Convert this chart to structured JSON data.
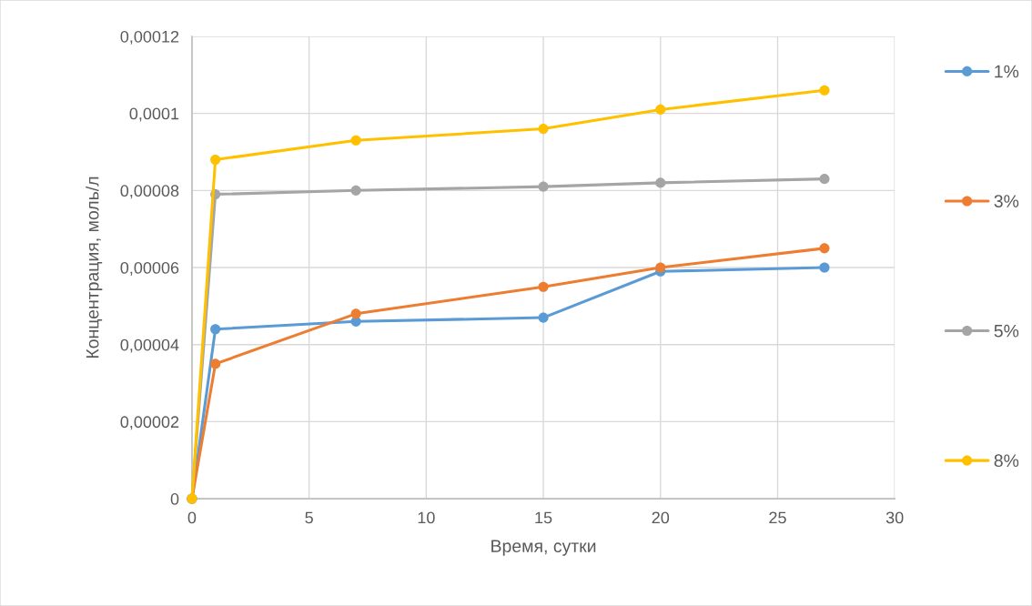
{
  "chart_data": {
    "type": "line",
    "xlabel": "Время, сутки",
    "ylabel": "Концентрация, моль/л",
    "series": [
      {
        "name": "1%",
        "color": "#5b9bd5",
        "x": [
          0,
          1,
          7,
          15,
          20,
          27
        ],
        "values": [
          0,
          4.4e-05,
          4.6e-05,
          4.7e-05,
          5.9e-05,
          6e-05
        ]
      },
      {
        "name": "3%",
        "color": "#ed7d31",
        "x": [
          0,
          1,
          7,
          15,
          20,
          27
        ],
        "values": [
          0,
          3.5e-05,
          4.8e-05,
          5.5e-05,
          6e-05,
          6.5e-05
        ]
      },
      {
        "name": "5%",
        "color": "#a5a5a5",
        "x": [
          0,
          1,
          7,
          15,
          20,
          27
        ],
        "values": [
          0,
          7.9e-05,
          8e-05,
          8.1e-05,
          8.2e-05,
          8.3e-05
        ]
      },
      {
        "name": "8%",
        "color": "#ffc000",
        "x": [
          0,
          1,
          7,
          15,
          20,
          27
        ],
        "values": [
          0,
          8.8e-05,
          9.3e-05,
          9.6e-05,
          0.000101,
          0.000106
        ]
      }
    ],
    "xlim": [
      0,
      30
    ],
    "xticks": [
      0,
      5,
      10,
      15,
      20,
      25,
      30
    ],
    "ylim": [
      0,
      0.00012
    ],
    "yticks": [
      {
        "value": 0,
        "label": "0"
      },
      {
        "value": 2e-05,
        "label": "0,00002"
      },
      {
        "value": 4e-05,
        "label": "0,00004"
      },
      {
        "value": 6e-05,
        "label": "0,00006"
      },
      {
        "value": 8e-05,
        "label": "0,00008"
      },
      {
        "value": 0.0001,
        "label": "0,0001"
      },
      {
        "value": 0.00012,
        "label": "0,00012"
      }
    ],
    "grid": true,
    "legend": "right",
    "marker": "circle",
    "line_style": "solid"
  }
}
